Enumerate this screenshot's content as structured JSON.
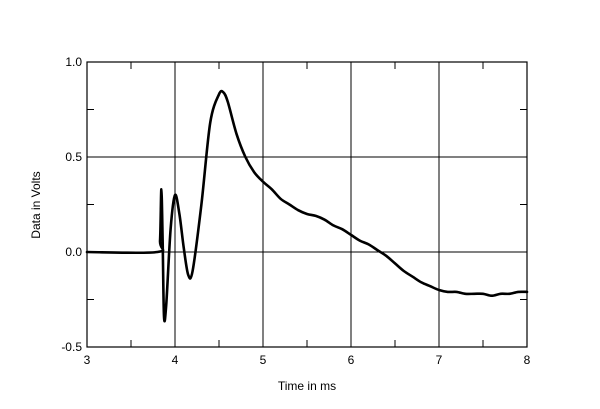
{
  "chart_data": {
    "type": "line",
    "title": "",
    "xlabel": "Time in ms",
    "ylabel": "Data in Volts",
    "xlim": [
      3,
      8
    ],
    "ylim": [
      -0.5,
      1.0
    ],
    "xticks": [
      3,
      4,
      5,
      6,
      7,
      8
    ],
    "yticks": [
      -0.5,
      0.0,
      0.5,
      1.0
    ],
    "xtick_labels": [
      "3",
      "4",
      "5",
      "6",
      "7",
      "8"
    ],
    "ytick_labels": [
      "-0.5",
      "0.0",
      "0.5",
      "1.0"
    ],
    "grid": true,
    "legend": "none",
    "line_color": "#000000",
    "series": [
      {
        "x": [
          3.0,
          3.8,
          3.83,
          3.845,
          3.86,
          3.875,
          3.9,
          3.95,
          4.0,
          4.05,
          4.1,
          4.15,
          4.2,
          4.3,
          4.4,
          4.5,
          4.55,
          4.6,
          4.7,
          4.8,
          4.9,
          5.0,
          5.1,
          5.2,
          5.3,
          5.4,
          5.5,
          5.6,
          5.7,
          5.8,
          5.9,
          6.0,
          6.1,
          6.2,
          6.3,
          6.4,
          6.5,
          6.6,
          6.7,
          6.8,
          6.9,
          7.0,
          7.1,
          7.2,
          7.3,
          7.4,
          7.5,
          7.6,
          7.7,
          7.8,
          7.9,
          8.0
        ],
        "y": [
          0.0,
          0.0,
          0.06,
          0.33,
          0.05,
          -0.34,
          -0.28,
          0.12,
          0.3,
          0.2,
          0.02,
          -0.12,
          -0.1,
          0.25,
          0.68,
          0.83,
          0.84,
          0.79,
          0.62,
          0.5,
          0.42,
          0.37,
          0.33,
          0.28,
          0.25,
          0.22,
          0.2,
          0.19,
          0.17,
          0.14,
          0.12,
          0.09,
          0.06,
          0.04,
          0.01,
          -0.02,
          -0.06,
          -0.1,
          -0.13,
          -0.16,
          -0.18,
          -0.2,
          -0.21,
          -0.21,
          -0.22,
          -0.22,
          -0.22,
          -0.23,
          -0.22,
          -0.22,
          -0.21,
          -0.21
        ]
      }
    ]
  }
}
